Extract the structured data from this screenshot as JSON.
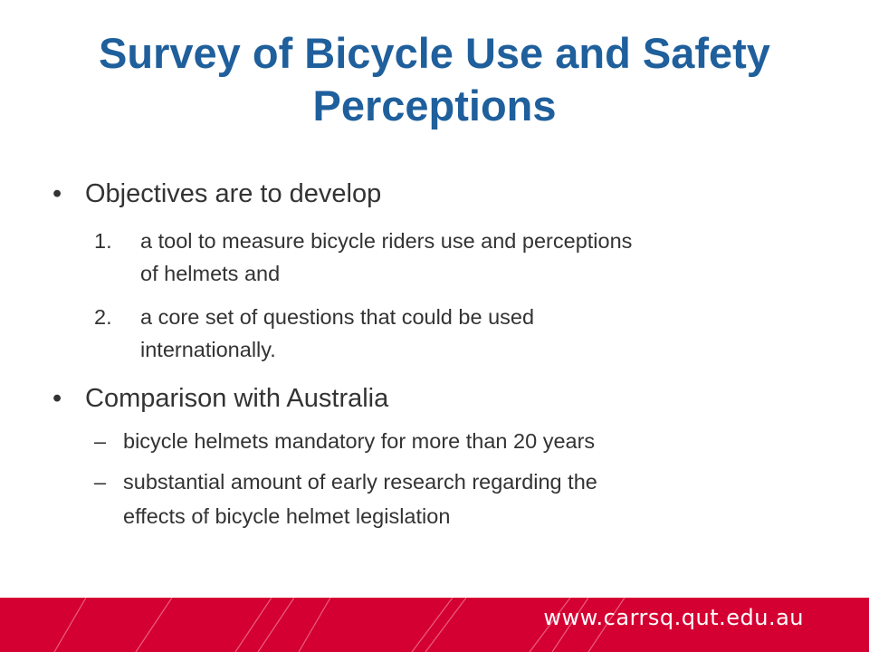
{
  "slide": {
    "title": "Survey of Bicycle Use and Safety Perceptions",
    "bullets": [
      {
        "marker": "•",
        "text": "Objectives are to develop",
        "subitems": [
          {
            "marker": "1.",
            "lines": [
              "a tool to measure bicycle riders use and perceptions",
              "of helmets and"
            ]
          },
          {
            "marker": "2.",
            "lines": [
              "a core set of questions that could be used",
              "internationally."
            ]
          }
        ]
      },
      {
        "marker": "•",
        "text": "Comparison with Australia",
        "subitems": [
          {
            "marker": "–",
            "lines": [
              "bicycle helmets mandatory for more than 20 years"
            ]
          },
          {
            "marker": "–",
            "lines": [
              "substantial amount of early research regarding the",
              "effects of bicycle helmet legislation"
            ]
          }
        ]
      }
    ]
  },
  "footer": {
    "url": "www.carrsq.qut.edu.au",
    "band_color": "#d50032"
  },
  "colors": {
    "title": "#1f5f9c",
    "body_text": "#333333"
  }
}
